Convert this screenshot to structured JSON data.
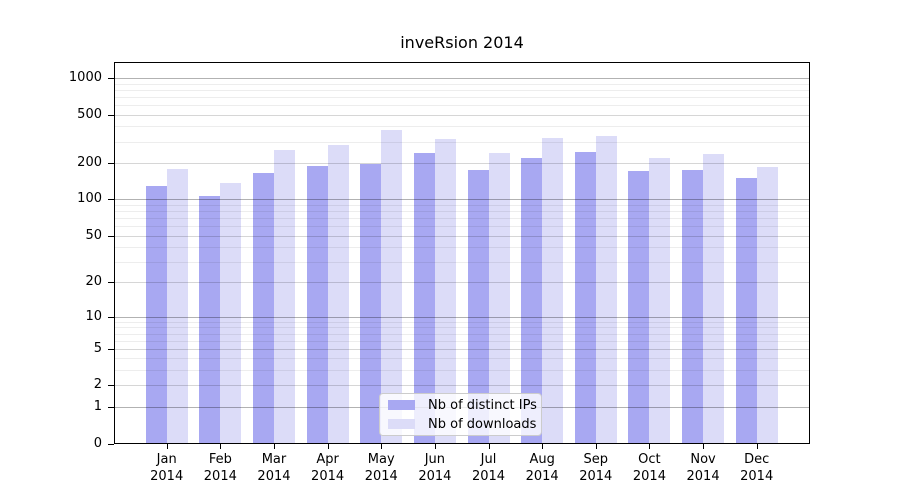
{
  "chart_data": {
    "type": "bar",
    "title": "inveRsion 2014",
    "categories": [
      "Jan 2014",
      "Feb 2014",
      "Mar 2014",
      "Apr 2014",
      "May 2014",
      "Jun 2014",
      "Jul 2014",
      "Aug 2014",
      "Sep 2014",
      "Oct 2014",
      "Nov 2014",
      "Dec 2014"
    ],
    "series": [
      {
        "name": "Nb of distinct IPs",
        "color": "#a8a8f2",
        "values": [
          128,
          107,
          166,
          190,
          197,
          240,
          176,
          219,
          248,
          173,
          175,
          149
        ]
      },
      {
        "name": "Nb of downloads",
        "color": "#dcdcf8",
        "values": [
          178,
          136,
          256,
          280,
          372,
          317,
          240,
          324,
          332,
          219,
          236,
          186
        ]
      }
    ],
    "xlabel": "",
    "ylabel": "",
    "yscale": "log10(1+y)",
    "yticks": [
      0,
      1,
      2,
      5,
      10,
      20,
      50,
      100,
      200,
      500,
      1000
    ],
    "ylim": [
      0,
      1360
    ],
    "grid": true,
    "legend_position": "lower center inside",
    "grid_colors": {
      "decade": "rgba(0,0,0,0.30)",
      "labeled": "rgba(0,0,0,0.16)",
      "minor": "rgba(0,0,0,0.07)"
    }
  }
}
